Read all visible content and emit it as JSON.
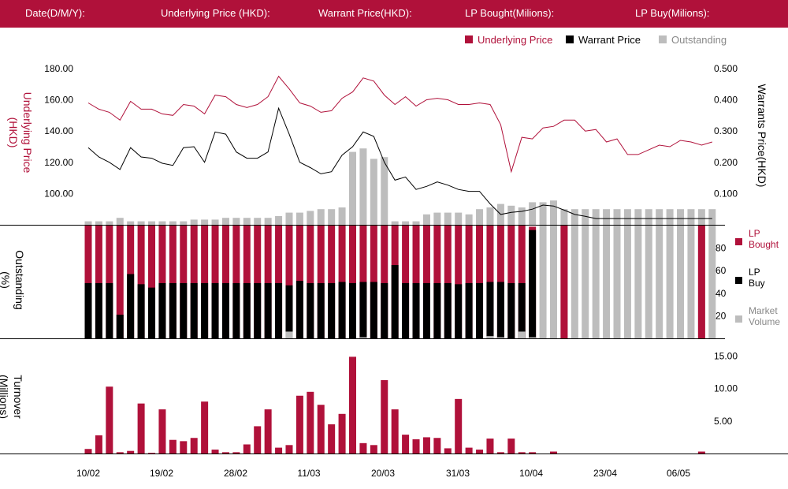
{
  "header": {
    "date_label": "Date(D/M/Y):",
    "underlying_label": "Underlying Price (HKD):",
    "warrant_label": "Warrant  Price(HKD):",
    "lp_bought_label": "LP Bought(Milions):",
    "lp_buy_label": "LP Buy(Milions):"
  },
  "colors": {
    "crimson": "#b0113a",
    "black": "#000000",
    "grey": "#bdbdbd",
    "header_bg": "#b0113a"
  },
  "chart_data": [
    {
      "type": "line",
      "ylabel": "Underlying Price (HKD)",
      "ylabel_right": "Warrants  Price(HKD)",
      "ylim": [
        80,
        184
      ],
      "ylim_right": [
        0,
        0.52
      ],
      "yticks": [
        "100.00",
        "120.00",
        "140.00",
        "160.00",
        "180.00"
      ],
      "yticks_right": [
        "0.100",
        "0.200",
        "0.300",
        "0.400",
        "0.500"
      ],
      "legend": [
        "Underlying Price",
        "Warrant  Price",
        "Outstanding"
      ],
      "x_ticks": [
        "10/02",
        "19/02",
        "28/02",
        "11/03",
        "20/03",
        "31/03",
        "10/04",
        "23/04",
        "06/05"
      ],
      "underlying": [
        158,
        154,
        152,
        147,
        159,
        154,
        154,
        151,
        150,
        157,
        156,
        151,
        163,
        162,
        157,
        155,
        157,
        162,
        175,
        167,
        158,
        156,
        152,
        153,
        161,
        165,
        174,
        172,
        163,
        157,
        162,
        156,
        160,
        161,
        160,
        157,
        157,
        158,
        157,
        144,
        114,
        136,
        135,
        142,
        143,
        147,
        147,
        140,
        141,
        133,
        135,
        125,
        125,
        128,
        131,
        130,
        134,
        133,
        131,
        133
      ],
      "warrant": [
        0.247,
        0.217,
        0.2,
        0.177,
        0.247,
        0.217,
        0.213,
        0.197,
        0.19,
        0.247,
        0.25,
        0.2,
        0.297,
        0.29,
        0.233,
        0.213,
        0.213,
        0.233,
        0.373,
        0.29,
        0.2,
        0.183,
        0.163,
        0.17,
        0.223,
        0.25,
        0.297,
        0.283,
        0.2,
        0.143,
        0.153,
        0.113,
        0.123,
        0.137,
        0.127,
        0.113,
        0.107,
        0.107,
        0.067,
        0.033,
        0.04,
        0.043,
        0.05,
        0.063,
        0.06,
        0.047,
        0.033,
        0.027,
        0.02,
        0.02,
        0.02,
        0.02,
        0.02,
        0.02,
        0.02,
        0.02,
        0.02,
        0.02,
        0.02,
        0.02
      ],
      "outstanding_pct": [
        2,
        2,
        2,
        4,
        2,
        2,
        2,
        2,
        2,
        2,
        3,
        3,
        3,
        4,
        4,
        4,
        4,
        4,
        5,
        7,
        7,
        8,
        9,
        9,
        10,
        42,
        44,
        38,
        39,
        2,
        2,
        2,
        6,
        7,
        7,
        7,
        6,
        9,
        10,
        12,
        11,
        10,
        13,
        13,
        14,
        9,
        9,
        9,
        9,
        9,
        9,
        9,
        9,
        9,
        9,
        9,
        9,
        9,
        9,
        9
      ]
    },
    {
      "type": "bar",
      "ylabel": "Outstanding (%)",
      "ylim": [
        0,
        100
      ],
      "yticks": [
        "20",
        "40",
        "60",
        "80"
      ],
      "legend": [
        "LP Bought",
        "LP Buy",
        "Market Volume"
      ],
      "lp_bought": [
        100,
        100,
        100,
        100,
        100,
        100,
        100,
        100,
        100,
        100,
        100,
        100,
        100,
        100,
        100,
        100,
        100,
        100,
        100,
        100,
        100,
        100,
        100,
        100,
        100,
        100,
        100,
        100,
        100,
        100,
        100,
        100,
        100,
        100,
        100,
        100,
        100,
        100,
        100,
        100,
        100,
        100,
        99,
        0,
        0,
        100,
        0,
        0,
        0,
        0,
        0,
        0,
        0,
        0,
        0,
        0,
        0,
        0,
        100,
        0
      ],
      "lp_buy": [
        49,
        49,
        49,
        21,
        57,
        48,
        45,
        49,
        49,
        49,
        49,
        49,
        49,
        49,
        49,
        49,
        49,
        49,
        49,
        47,
        51,
        49,
        49,
        49,
        50,
        49,
        50,
        50,
        49,
        65,
        49,
        49,
        49,
        49,
        49,
        48,
        49,
        49,
        50,
        50,
        49,
        49,
        96,
        0,
        0,
        0,
        0,
        0,
        0,
        0,
        0,
        0,
        0,
        0,
        0,
        0,
        0,
        0,
        0,
        0
      ],
      "market_volume": [
        0,
        0,
        0,
        0,
        0,
        0,
        0,
        0,
        0,
        0,
        0,
        0,
        0,
        0,
        0,
        0,
        0,
        0,
        0,
        6,
        0,
        0,
        0,
        0,
        0,
        0,
        1,
        0,
        0,
        0,
        0,
        0,
        0,
        0,
        0,
        0,
        0,
        0,
        2,
        1,
        0,
        6,
        1,
        100,
        100,
        100,
        100,
        100,
        100,
        100,
        100,
        100,
        100,
        100,
        100,
        100,
        100,
        100,
        100,
        100
      ]
    },
    {
      "type": "bar",
      "ylabel": "Turnover (Millions)",
      "ylim": [
        0,
        16.4
      ],
      "yticks": [
        "5.00",
        "10.00",
        "15.00"
      ],
      "values": [
        0.7,
        2.8,
        10.3,
        0.2,
        0.4,
        7.7,
        0.1,
        6.8,
        2.1,
        1.9,
        2.4,
        8.0,
        0.6,
        0.2,
        0.2,
        1.4,
        4.2,
        6.8,
        0.9,
        1.3,
        8.9,
        9.5,
        7.5,
        4.5,
        6.1,
        14.9,
        1.6,
        1.3,
        11.3,
        6.8,
        2.9,
        2.2,
        2.5,
        2.4,
        0.8,
        8.4,
        0.9,
        0.6,
        2.3,
        0.2,
        2.3,
        0.2,
        0.2,
        0,
        0.3,
        0,
        0,
        0,
        0,
        0,
        0,
        0,
        0,
        0,
        0,
        0,
        0,
        0,
        0.3,
        0
      ]
    }
  ]
}
